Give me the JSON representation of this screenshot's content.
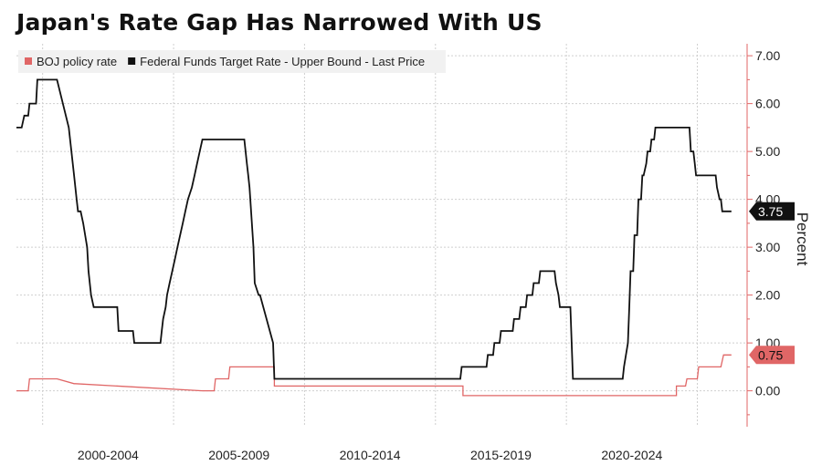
{
  "chart_data": {
    "type": "line",
    "title": "Japan's Rate Gap Has Narrowed With US",
    "xlabel": "",
    "ylabel": "Percent",
    "xlim": [
      1999.0,
      2026.9
    ],
    "ylim": [
      -0.75,
      7.25
    ],
    "yticks": [
      0,
      1,
      2,
      3,
      4,
      5,
      6,
      7
    ],
    "ytick_labels": [
      "0.00",
      "1.00",
      "2.00",
      "3.00",
      "4.00",
      "5.00",
      "6.00",
      "7.00"
    ],
    "x_categories": [
      {
        "label": "2000-2004",
        "start": 2000,
        "end": 2005
      },
      {
        "label": "2005-2009",
        "start": 2005,
        "end": 2010
      },
      {
        "label": "2010-2014",
        "start": 2010,
        "end": 2015
      },
      {
        "label": "2015-2019",
        "start": 2015,
        "end": 2020
      },
      {
        "label": "2020-2024",
        "start": 2020,
        "end": 2025
      }
    ],
    "grid": true,
    "legend_position": "top-left",
    "series": [
      {
        "name": "BOJ policy rate",
        "color": "#e06666",
        "last_value_label": "0.75",
        "badge_value": 0.75,
        "x": [
          1999.0,
          1999.45,
          1999.5,
          1999.95,
          2000.05,
          2000.1,
          2000.55,
          2001.2,
          2001.25,
          2006.1,
          2006.55,
          2006.6,
          2007.1,
          2007.15,
          2007.9,
          2008.85,
          2008.85,
          2016.05,
          2016.05,
          2024.2,
          2024.2,
          2024.55,
          2024.6,
          2025.0,
          2025.05,
          2025.9,
          2026.0,
          2026.3
        ],
        "y": [
          0.0,
          0.0,
          0.25,
          0.25,
          0.25,
          0.25,
          0.25,
          0.15,
          0.15,
          0.0,
          0.0,
          0.25,
          0.25,
          0.5,
          0.5,
          0.5,
          0.1,
          0.1,
          -0.1,
          -0.1,
          0.1,
          0.1,
          0.25,
          0.25,
          0.5,
          0.5,
          0.75,
          0.75
        ]
      },
      {
        "name": "Federal Funds Target Rate - Upper Bound - Last Price",
        "color": "#111111",
        "last_value_label": "3.75",
        "badge_value": 3.75,
        "x": [
          1999.0,
          1999.2,
          1999.3,
          1999.45,
          1999.5,
          1999.55,
          1999.75,
          1999.8,
          2000.0,
          2000.05,
          2000.35,
          2000.4,
          2000.55,
          2001.0,
          2001.1,
          2001.2,
          2001.3,
          2001.35,
          2001.45,
          2001.55,
          2001.7,
          2001.75,
          2001.85,
          2001.95,
          2002.85,
          2002.9,
          2003.45,
          2003.5,
          2004.5,
          2004.55,
          2004.6,
          2004.7,
          2004.75,
          2004.85,
          2004.95,
          2005.05,
          2005.15,
          2005.25,
          2005.35,
          2005.45,
          2005.55,
          2005.7,
          2005.8,
          2005.9,
          2006.0,
          2006.1,
          2006.2,
          2006.35,
          2006.45,
          2006.55,
          2007.7,
          2007.8,
          2007.85,
          2007.9,
          2008.05,
          2008.1,
          2008.25,
          2008.3,
          2008.8,
          2008.85,
          2008.95,
          2015.95,
          2016.0,
          2016.95,
          2017.0,
          2017.2,
          2017.25,
          2017.45,
          2017.5,
          2017.95,
          2018.0,
          2018.2,
          2018.25,
          2018.45,
          2018.5,
          2018.7,
          2018.75,
          2018.95,
          2019.0,
          2019.55,
          2019.6,
          2019.7,
          2019.75,
          2019.8,
          2019.85,
          2020.15,
          2020.2,
          2020.25,
          2022.15,
          2022.2,
          2022.35,
          2022.4,
          2022.45,
          2022.55,
          2022.6,
          2022.7,
          2022.75,
          2022.85,
          2022.9,
          2022.95,
          2023.05,
          2023.1,
          2023.2,
          2023.25,
          2023.35,
          2023.4,
          2023.55,
          2023.6,
          2024.7,
          2024.75,
          2024.85,
          2024.9,
          2024.95,
          2025.0,
          2025.7,
          2025.75,
          2025.85,
          2025.9,
          2025.95,
          2026.3
        ],
        "y": [
          5.5,
          5.5,
          5.75,
          5.75,
          6.0,
          6.0,
          6.0,
          6.5,
          6.5,
          6.5,
          6.5,
          6.5,
          6.5,
          5.5,
          5.0,
          4.5,
          4.0,
          3.75,
          3.75,
          3.5,
          3.0,
          2.5,
          2.0,
          1.75,
          1.75,
          1.25,
          1.25,
          1.0,
          1.0,
          1.25,
          1.5,
          1.75,
          2.0,
          2.25,
          2.5,
          2.75,
          3.0,
          3.25,
          3.5,
          3.75,
          4.0,
          4.25,
          4.5,
          4.75,
          5.0,
          5.25,
          5.25,
          5.25,
          5.25,
          5.25,
          5.25,
          4.75,
          4.5,
          4.25,
          3.0,
          2.25,
          2.0,
          2.0,
          1.0,
          0.25,
          0.25,
          0.25,
          0.5,
          0.5,
          0.75,
          0.75,
          1.0,
          1.0,
          1.25,
          1.25,
          1.5,
          1.5,
          1.75,
          1.75,
          2.0,
          2.0,
          2.25,
          2.25,
          2.5,
          2.5,
          2.25,
          2.0,
          1.75,
          1.75,
          1.75,
          1.75,
          1.0,
          0.25,
          0.25,
          0.5,
          1.0,
          1.75,
          2.5,
          2.5,
          3.25,
          3.25,
          4.0,
          4.0,
          4.5,
          4.5,
          4.75,
          5.0,
          5.0,
          5.25,
          5.25,
          5.5,
          5.5,
          5.5,
          5.5,
          5.0,
          5.0,
          4.75,
          4.5,
          4.5,
          4.5,
          4.25,
          4.0,
          4.0,
          3.75,
          3.75
        ]
      }
    ]
  }
}
